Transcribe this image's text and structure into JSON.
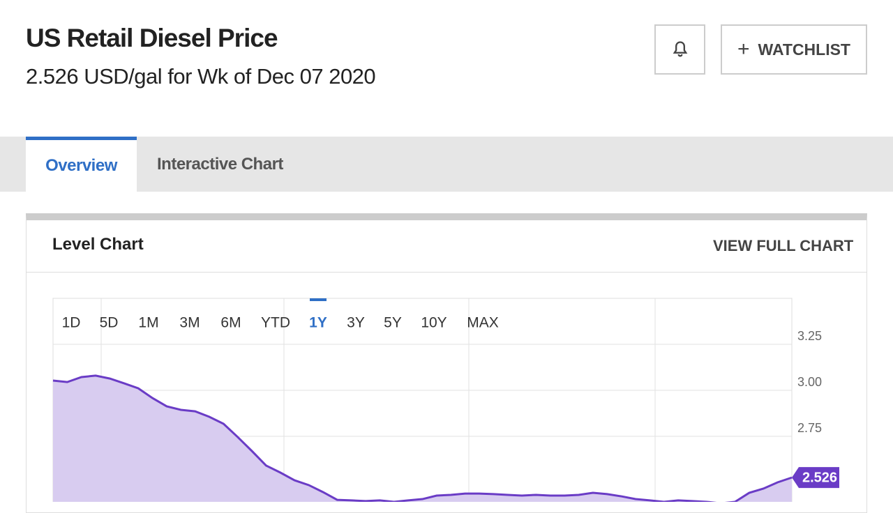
{
  "header": {
    "title": "US Retail Diesel Price",
    "subtitle": "2.526 USD/gal for Wk of Dec 07 2020",
    "watchlist_button": "WATCHLIST"
  },
  "tabs": [
    "Overview",
    "Interactive Chart"
  ],
  "panel": {
    "title": "Level Chart",
    "link": "VIEW FULL CHART"
  },
  "chart_data": {
    "type": "area",
    "ranges": [
      "1D",
      "5D",
      "1M",
      "3M",
      "6M",
      "YTD",
      "1Y",
      "3Y",
      "5Y",
      "10Y",
      "MAX"
    ],
    "selected_range": 6,
    "series": [
      {
        "color": "#6a3cc6",
        "fill": "#d8ccf0",
        "values": [
          3.053,
          3.045,
          3.072,
          3.08,
          3.064,
          3.038,
          3.011,
          2.958,
          2.913,
          2.894,
          2.886,
          2.856,
          2.818,
          2.746,
          2.67,
          2.591,
          2.553,
          2.511,
          2.485,
          2.447,
          2.405,
          2.402,
          2.398,
          2.402,
          2.394,
          2.402,
          2.409,
          2.428,
          2.432,
          2.439,
          2.439,
          2.436,
          2.432,
          2.428,
          2.432,
          2.428,
          2.428,
          2.432,
          2.443,
          2.436,
          2.424,
          2.409,
          2.402,
          2.394,
          2.402,
          2.398,
          2.394,
          2.386,
          2.394,
          2.443,
          2.466,
          2.5,
          2.526
        ]
      }
    ],
    "ylim": [
      2.25,
      3.5
    ],
    "yticks": [
      {
        "value": 3.25,
        "label": "3.25"
      },
      {
        "value": 3,
        "label": "3.00"
      },
      {
        "value": 2.75,
        "label": "2.75"
      }
    ],
    "grid": true
  }
}
